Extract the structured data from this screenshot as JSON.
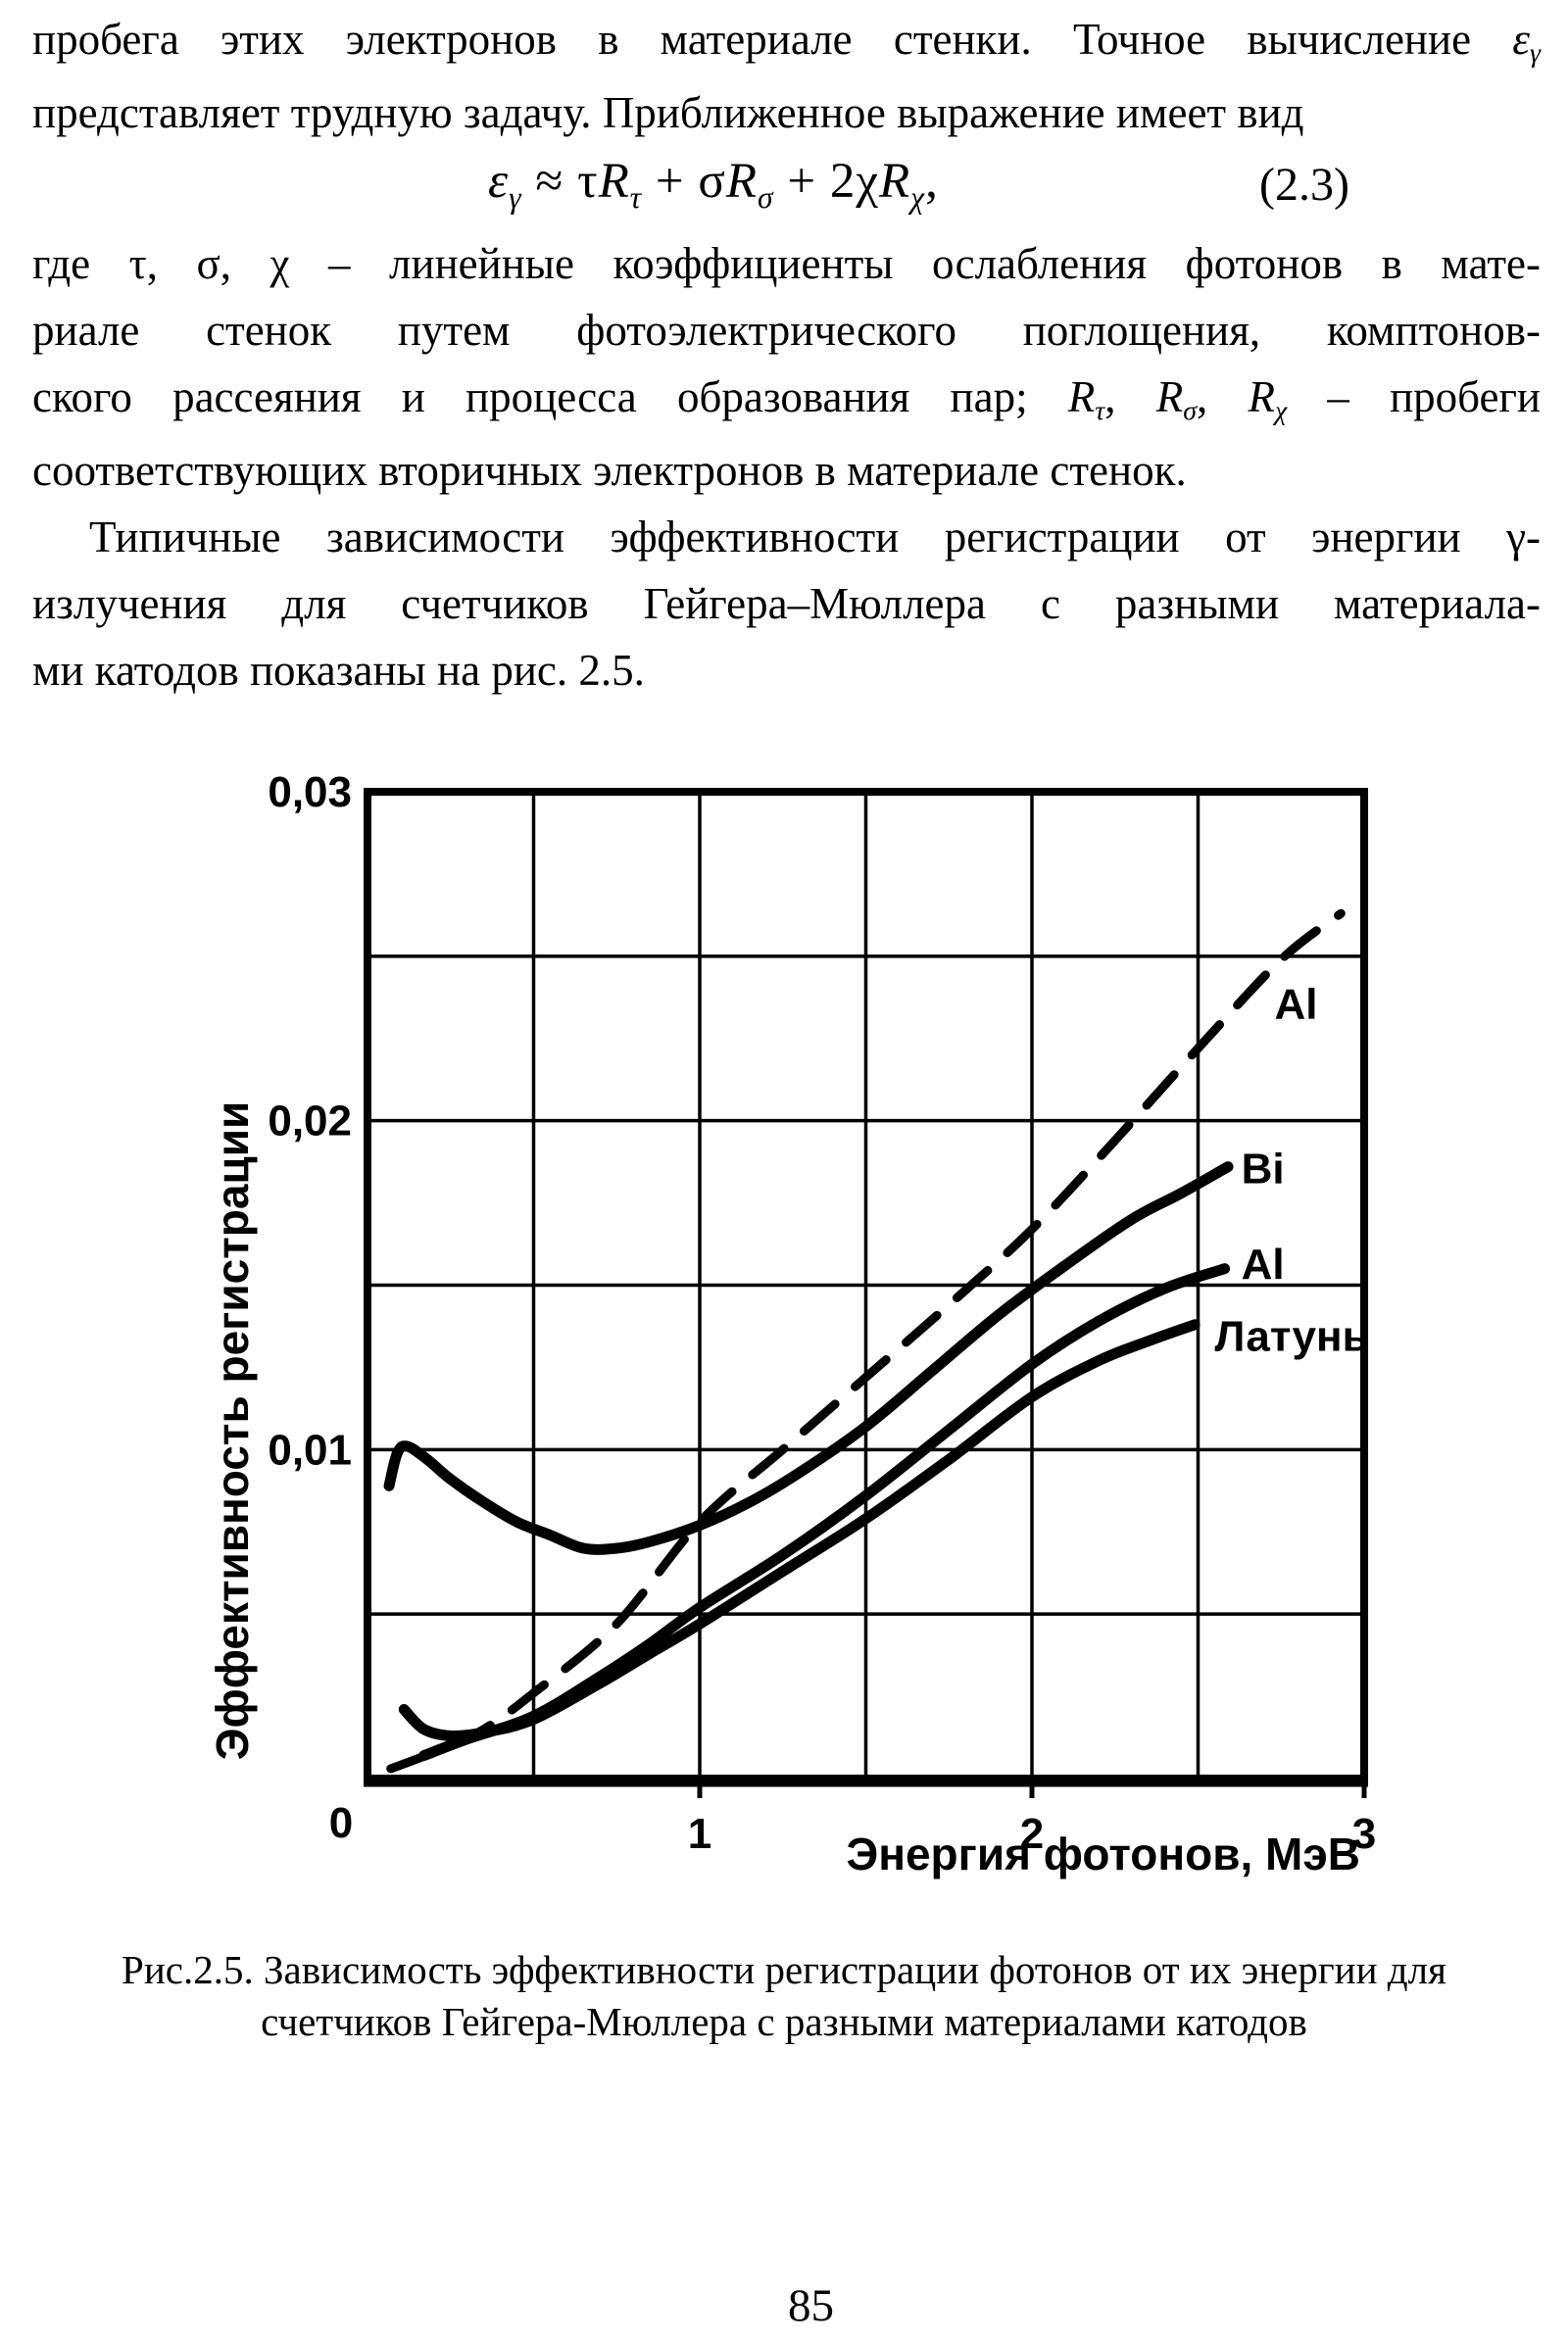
{
  "colors": {
    "ink": "#000000",
    "paper": "#ffffff"
  },
  "body": {
    "lines_before_formula": [
      {
        "just": true,
        "ind": false,
        "seg": [
          {
            "t": "пробега этих электронов в материале стенки. Точное вычисление ",
            "st": "n"
          },
          {
            "t": "ε",
            "st": "i"
          },
          {
            "t": "γ",
            "st": "s"
          }
        ]
      },
      {
        "just": false,
        "ind": false,
        "seg": [
          {
            "t": "представляет трудную задачу. Приближенное выражение имеет вид",
            "st": "n"
          }
        ]
      }
    ],
    "formula": {
      "segments": [
        {
          "t": "ε",
          "st": "i"
        },
        {
          "t": "γ",
          "st": "s"
        },
        {
          "t": " ≈ τ",
          "st": "n"
        },
        {
          "t": "R",
          "st": "i"
        },
        {
          "t": "τ",
          "st": "s"
        },
        {
          "t": " + σ",
          "st": "n"
        },
        {
          "t": "R",
          "st": "i"
        },
        {
          "t": "σ",
          "st": "s"
        },
        {
          "t": " + 2χ",
          "st": "n"
        },
        {
          "t": "R",
          "st": "i"
        },
        {
          "t": "χ",
          "st": "s"
        },
        {
          "t": ",",
          "st": "n"
        }
      ],
      "number": "(2.3)"
    },
    "lines_after_formula": [
      {
        "just": true,
        "ind": false,
        "seg": [
          {
            "t": "где τ, σ, χ – линейные коэффициенты ослабления фотонов в мате-",
            "st": "n"
          }
        ]
      },
      {
        "just": true,
        "ind": false,
        "seg": [
          {
            "t": "риале стенок путем фотоэлектрического поглощения, комптонов-",
            "st": "n"
          }
        ]
      },
      {
        "just": true,
        "ind": false,
        "seg": [
          {
            "t": "ского рассеяния и процесса образования пар; ",
            "st": "n"
          },
          {
            "t": "R",
            "st": "i"
          },
          {
            "t": "τ",
            "st": "s"
          },
          {
            "t": ", ",
            "st": "n"
          },
          {
            "t": "R",
            "st": "i"
          },
          {
            "t": "σ",
            "st": "s"
          },
          {
            "t": ", ",
            "st": "n"
          },
          {
            "t": "R",
            "st": "i"
          },
          {
            "t": "χ",
            "st": "s"
          },
          {
            "t": " – пробеги",
            "st": "n"
          }
        ]
      },
      {
        "just": false,
        "ind": false,
        "seg": [
          {
            "t": "соответствующих вторичных электронов в материале стенок.",
            "st": "n"
          }
        ]
      },
      {
        "just": true,
        "ind": true,
        "seg": [
          {
            "t": "Типичные зависимости эффективности регистрации от энергии γ-",
            "st": "n"
          }
        ]
      },
      {
        "just": true,
        "ind": false,
        "seg": [
          {
            "t": "излучения для счетчиков Гейгера–Мюллера с разными материала-",
            "st": "n"
          }
        ]
      },
      {
        "just": false,
        "ind": false,
        "seg": [
          {
            "t": "ми катодов показаны на рис. 2.5.",
            "st": "n"
          }
        ]
      }
    ]
  },
  "chart_data": {
    "type": "line",
    "title": "",
    "xlabel": "Энергия фотонов, МэВ",
    "ylabel": "Эффективность регистрации",
    "xlim": [
      0,
      3
    ],
    "ylim": [
      0,
      0.03
    ],
    "x_grid_step": 0.5,
    "y_grid_step": 0.005,
    "grid": true,
    "legend_position": "labels-on-curves",
    "x_ticks": [
      {
        "v": 1,
        "label": "1"
      },
      {
        "v": 2,
        "label": "2"
      },
      {
        "v": 3,
        "label": "3"
      }
    ],
    "origin_label": "0",
    "y_ticks": [
      {
        "v": 0.01,
        "label": "0,01"
      },
      {
        "v": 0.02,
        "label": "0,02"
      },
      {
        "v": 0.03,
        "label": "0,03"
      }
    ],
    "series": [
      {
        "name": "Al (dashed)",
        "label": "Al",
        "style": "dashed",
        "label_x": 2.73,
        "label_y": 0.0231,
        "points": [
          [
            0.07,
            0.0003
          ],
          [
            0.2,
            0.0008
          ],
          [
            0.35,
            0.0015
          ],
          [
            0.5,
            0.0026
          ],
          [
            0.75,
            0.0047
          ],
          [
            1.0,
            0.0078
          ],
          [
            1.25,
            0.01
          ],
          [
            1.5,
            0.0122
          ],
          [
            1.75,
            0.0144
          ],
          [
            2.0,
            0.0167
          ],
          [
            2.25,
            0.0194
          ],
          [
            2.5,
            0.0222
          ],
          [
            2.75,
            0.0249
          ],
          [
            2.93,
            0.0263
          ]
        ]
      },
      {
        "name": "Bi",
        "label": "Bi",
        "style": "solid",
        "label_x": 2.63,
        "label_y": 0.0181,
        "points": [
          [
            0.065,
            0.0089
          ],
          [
            0.09,
            0.0099
          ],
          [
            0.12,
            0.0101
          ],
          [
            0.18,
            0.0097
          ],
          [
            0.25,
            0.0091
          ],
          [
            0.35,
            0.0084
          ],
          [
            0.45,
            0.0078
          ],
          [
            0.55,
            0.0074
          ],
          [
            0.65,
            0.007
          ],
          [
            0.75,
            0.007
          ],
          [
            0.85,
            0.0072
          ],
          [
            1.0,
            0.0077
          ],
          [
            1.15,
            0.0084
          ],
          [
            1.3,
            0.0093
          ],
          [
            1.5,
            0.0107
          ],
          [
            1.7,
            0.0124
          ],
          [
            1.9,
            0.0141
          ],
          [
            2.1,
            0.0156
          ],
          [
            2.3,
            0.017
          ],
          [
            2.45,
            0.0178
          ],
          [
            2.59,
            0.0186
          ]
        ]
      },
      {
        "name": "Al",
        "label": "Al",
        "style": "solid",
        "label_x": 2.63,
        "label_y": 0.0152,
        "points": [
          [
            0.17,
            0.0007
          ],
          [
            0.3,
            0.0012
          ],
          [
            0.5,
            0.0019
          ],
          [
            0.7,
            0.0031
          ],
          [
            0.85,
            0.0041
          ],
          [
            1.0,
            0.0052
          ],
          [
            1.25,
            0.0068
          ],
          [
            1.5,
            0.0086
          ],
          [
            1.75,
            0.0106
          ],
          [
            2.0,
            0.0126
          ],
          [
            2.2,
            0.0139
          ],
          [
            2.4,
            0.0149
          ],
          [
            2.58,
            0.0155
          ]
        ]
      },
      {
        "name": "Латунь",
        "label": "Латунь",
        "style": "solid",
        "label_x": 2.55,
        "label_y": 0.013,
        "points": [
          [
            0.11,
            0.0021
          ],
          [
            0.17,
            0.0015
          ],
          [
            0.25,
            0.0013
          ],
          [
            0.35,
            0.0014
          ],
          [
            0.5,
            0.0018
          ],
          [
            0.7,
            0.0029
          ],
          [
            0.85,
            0.0038
          ],
          [
            1.0,
            0.0047
          ],
          [
            1.25,
            0.0063
          ],
          [
            1.5,
            0.0079
          ],
          [
            1.75,
            0.0097
          ],
          [
            2.0,
            0.0116
          ],
          [
            2.2,
            0.0127
          ],
          [
            2.35,
            0.0133
          ],
          [
            2.49,
            0.0138
          ]
        ]
      }
    ]
  },
  "caption": {
    "lines": [
      "Рис.2.5. Зависимость эффективности регистрации фотонов от их энергии для",
      "счетчиков Гейгера-Мюллера с разными материалами катодов"
    ]
  },
  "page_number": "85"
}
